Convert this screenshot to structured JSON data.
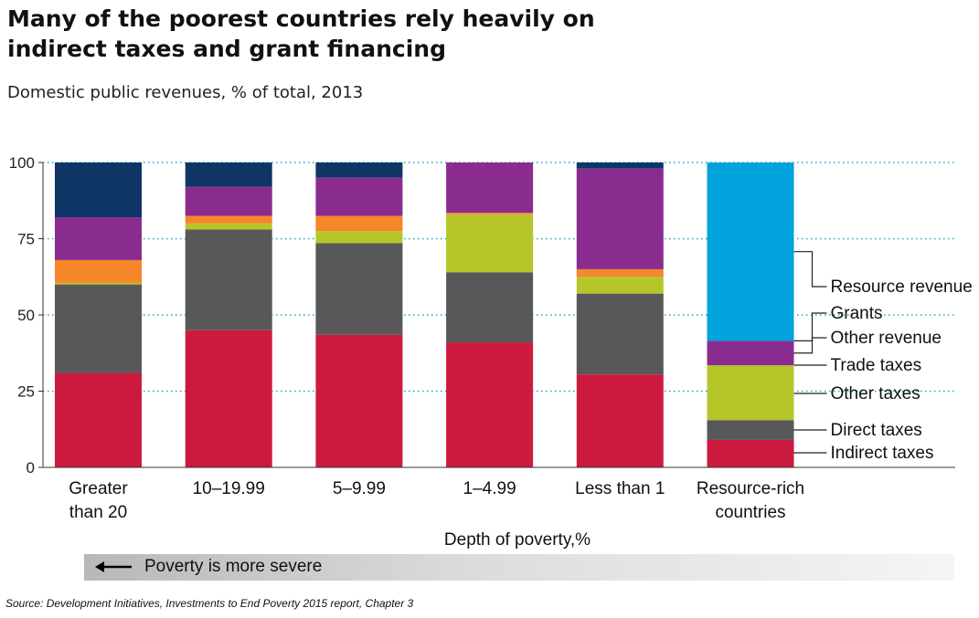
{
  "header": {
    "title": "Many of the poorest countries rely heavily on indirect taxes and grant financing",
    "subtitle": "Domestic public revenues, % of total, 2013"
  },
  "footer": {
    "arrow_label": "Poverty is more severe",
    "source": "Source: Development Initiatives, Investments to End Poverty 2015 report, Chapter 3"
  },
  "chart_data": {
    "type": "bar",
    "stacked": true,
    "title": "Many of the poorest countries rely heavily on indirect taxes and grant financing",
    "subtitle": "Domestic public revenues, % of total, 2013",
    "xlabel": "Depth of poverty,%",
    "ylabel": "",
    "ylim": [
      0,
      100
    ],
    "yticks": [
      0,
      25,
      50,
      75,
      100
    ],
    "grid": "dotted horizontal at ticks",
    "legend": "right, labels beside last bar",
    "categories": [
      [
        "Greater",
        "than 20"
      ],
      [
        "10–19.99"
      ],
      [
        "5–9.99"
      ],
      [
        "1–4.99"
      ],
      [
        "Less than 1"
      ],
      [
        "Resource-rich",
        "countries"
      ]
    ],
    "series": [
      {
        "name": "Indirect taxes",
        "color": "#cc1a3e",
        "values": [
          31,
          45,
          43.5,
          41,
          30.5,
          9
        ]
      },
      {
        "name": "Direct taxes",
        "color": "#58585a",
        "values": [
          29,
          33,
          30,
          23,
          26.5,
          6.5
        ]
      },
      {
        "name": "Other taxes",
        "color": "#b6c52a",
        "values": [
          0.5,
          2,
          4,
          19,
          5.5,
          18
        ]
      },
      {
        "name": "Trade taxes",
        "color": "#f5862a",
        "values": [
          7.5,
          2.5,
          5,
          0.5,
          2.5,
          0
        ]
      },
      {
        "name": "Other revenue",
        "color": "#8a2c8f",
        "values": [
          14,
          9.5,
          12.5,
          16.5,
          33,
          8
        ]
      },
      {
        "name": "Grants",
        "color": "#0f3566",
        "values": [
          18,
          8,
          5,
          0,
          2,
          0
        ]
      },
      {
        "name": "Resource revenue",
        "color": "#00a3db",
        "values": [
          0,
          0,
          0,
          0,
          0,
          58.5
        ]
      }
    ],
    "legend_order": [
      "Resource revenue",
      "Grants",
      "Other revenue",
      "Trade taxes",
      "Other taxes",
      "Direct taxes",
      "Indirect taxes"
    ]
  }
}
